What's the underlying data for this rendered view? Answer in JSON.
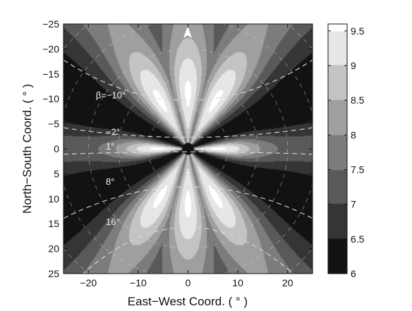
{
  "chart_data": {
    "type": "heatmap",
    "title": "",
    "xlabel": "East−West Coord. ( ° )",
    "ylabel": "North−South Coord. ( ° )",
    "xlim": [
      -25,
      25
    ],
    "ylim": [
      -25,
      25
    ],
    "y_reversed": true,
    "x_ticks": [
      "−20",
      "−10",
      "0",
      "10",
      "20"
    ],
    "x_tick_values": [
      -20,
      -10,
      0,
      10,
      20
    ],
    "y_ticks": [
      "−25",
      "−20",
      "−15",
      "−10",
      "−5",
      "0",
      "5",
      "10",
      "15",
      "20",
      "25"
    ],
    "y_tick_values": [
      -25,
      -20,
      -15,
      -10,
      -5,
      0,
      5,
      10,
      15,
      20,
      25
    ],
    "colorbar": {
      "range": [
        6,
        9.6
      ],
      "ticks": [
        "6",
        "6.5",
        "7",
        "7.5",
        "8",
        "8.5",
        "9",
        "9.5"
      ],
      "tick_values": [
        6,
        6.5,
        7,
        7.5,
        8,
        8.5,
        9,
        9.5
      ],
      "levels": [
        6,
        6.5,
        7,
        7.5,
        8,
        8.5,
        9,
        9.5
      ],
      "colormap": "gray"
    },
    "field": {
      "description_of_pattern": "six-lobed petal pattern centred at origin",
      "lobe_angles_deg": [
        60,
        90,
        120,
        240,
        270,
        300
      ],
      "horizontal_lobes": [
        0,
        180
      ],
      "min_value": 6,
      "max_value": 9.6
    },
    "contour_lines": [
      {
        "label": "β=−10°",
        "y_at_center": -9.7
      },
      {
        "label": "−2°",
        "y_at_center": -2.3
      },
      {
        "label": "1°",
        "y_at_center": 0.6
      },
      {
        "label": "8°",
        "y_at_center": 7.6
      },
      {
        "label": "16°",
        "y_at_center": 15.7
      }
    ],
    "grid": false,
    "annotations": [
      "north-arrow"
    ]
  },
  "colors": {
    "axes": "#111111",
    "contour_line": "#d9d9d9"
  }
}
